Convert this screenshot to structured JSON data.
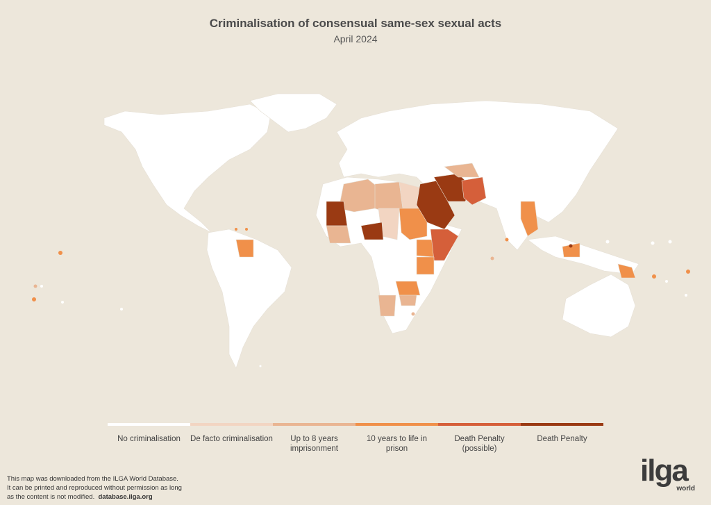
{
  "title": "Criminalisation of consensual same-sex sexual acts",
  "subtitle": "April 2024",
  "background_color": "#ede7db",
  "legend": [
    {
      "label": "No criminalisation",
      "color": "#ffffff"
    },
    {
      "label": "De facto criminalisation",
      "color": "#f2d5c2"
    },
    {
      "label": "Up to 8 years imprisonment",
      "color": "#e9b592"
    },
    {
      "label": "10 years to life in prison",
      "color": "#f0904a"
    },
    {
      "label": "Death Penalty (possible)",
      "color": "#d55f3a"
    },
    {
      "label": "Death Penalty",
      "color": "#9a3a13"
    }
  ],
  "footer": {
    "line1": "This map was downloaded from the ILGA World Database.",
    "line2": "It can be printed and reproduced without permission as long",
    "line3": "as the content is not modified.",
    "link": "database.ilga.org"
  },
  "logo": {
    "main": "ilga",
    "sub": "world"
  }
}
